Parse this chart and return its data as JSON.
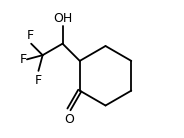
{
  "background_color": "#ffffff",
  "bond_color": "#000000",
  "atom_color": "#000000",
  "font_size": 9,
  "label_OH": "OH",
  "label_O": "O",
  "label_F": "F",
  "figsize": [
    1.84,
    1.38
  ],
  "dpi": 100,
  "xlim": [
    0,
    1
  ],
  "ylim": [
    0,
    1
  ]
}
